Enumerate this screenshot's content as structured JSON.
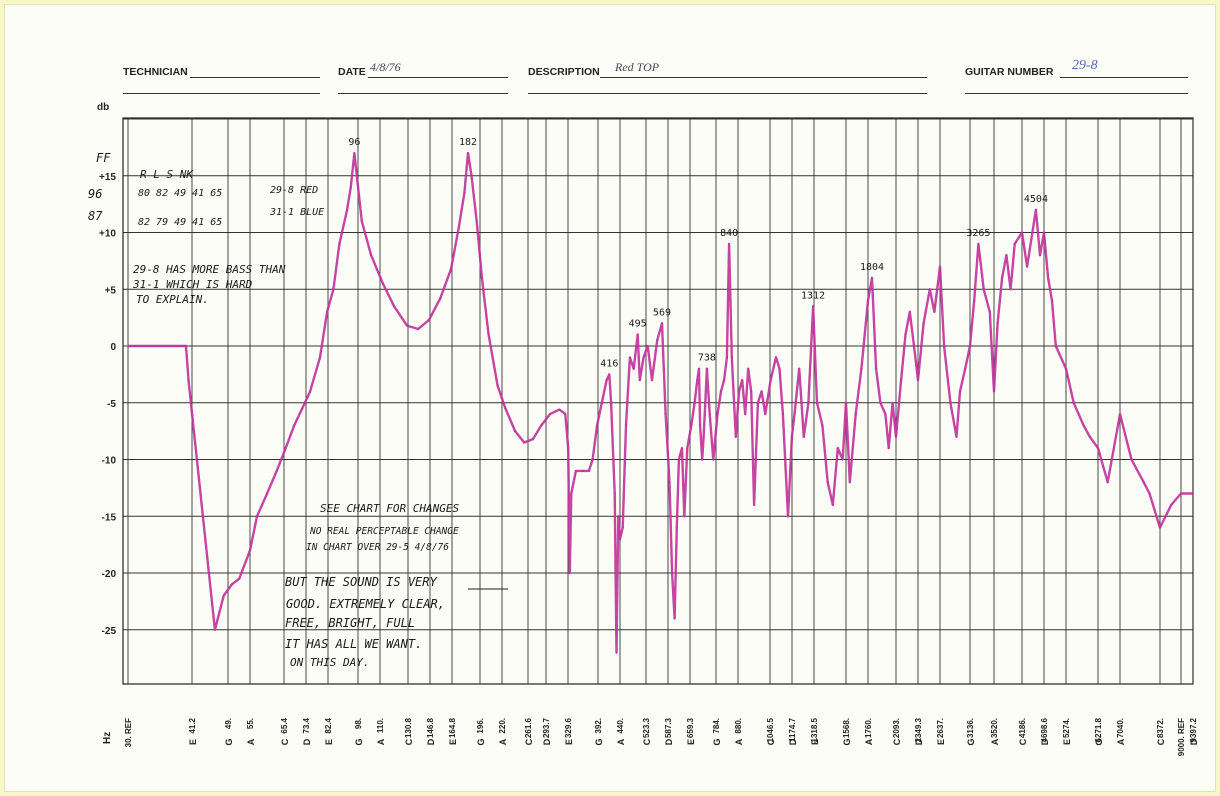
{
  "header": {
    "technician_label": "TECHNICIAN",
    "technician_value": "",
    "date_label": "DATE",
    "date_value": "4/8/76",
    "description_label": "DESCRIPTION",
    "description_value": "Red TOP",
    "guitar_number_label": "GUITAR NUMBER",
    "guitar_number_value": "29-8"
  },
  "chart_data": {
    "type": "line",
    "ylabel": "db",
    "xlabel": "Hz",
    "ylim": [
      -30,
      20
    ],
    "y_ticks": [
      "+15",
      "+10",
      "+5",
      "0",
      "-5",
      "-10",
      "-15",
      "-20",
      "-25"
    ],
    "x_ticks": [
      {
        "freq": "30. REF",
        "note": ""
      },
      {
        "freq": "41.2",
        "note": "E"
      },
      {
        "freq": "49.",
        "note": "G"
      },
      {
        "freq": "55.",
        "note": "A"
      },
      {
        "freq": "65.4",
        "note": "C"
      },
      {
        "freq": "73.4",
        "note": "D"
      },
      {
        "freq": "82.4",
        "note": "E"
      },
      {
        "freq": "98.",
        "note": "G"
      },
      {
        "freq": "110.",
        "note": "A"
      },
      {
        "freq": "130.8",
        "note": "C"
      },
      {
        "freq": "146.8",
        "note": "D"
      },
      {
        "freq": "164.8",
        "note": "E"
      },
      {
        "freq": "196.",
        "note": "G"
      },
      {
        "freq": "220.",
        "note": "A"
      },
      {
        "freq": "261.6",
        "note": "C"
      },
      {
        "freq": "293.7",
        "note": "D"
      },
      {
        "freq": "329.6",
        "note": "E"
      },
      {
        "freq": "392.",
        "note": "G"
      },
      {
        "freq": "440.",
        "note": "A"
      },
      {
        "freq": "523.3",
        "note": "C"
      },
      {
        "freq": "587.3",
        "note": "D"
      },
      {
        "freq": "659.3",
        "note": "E"
      },
      {
        "freq": "784.",
        "note": "G"
      },
      {
        "freq": "880.",
        "note": "A"
      },
      {
        "freq": "1046.5",
        "note": "C"
      },
      {
        "freq": "1174.7",
        "note": "D"
      },
      {
        "freq": "1318.5",
        "note": "E"
      },
      {
        "freq": "1568.",
        "note": "G"
      },
      {
        "freq": "1760.",
        "note": "A"
      },
      {
        "freq": "2093.",
        "note": "C"
      },
      {
        "freq": "2349.3",
        "note": "D"
      },
      {
        "freq": "2637.",
        "note": "E"
      },
      {
        "freq": "3136.",
        "note": "G"
      },
      {
        "freq": "3520.",
        "note": "A"
      },
      {
        "freq": "4186.",
        "note": "C"
      },
      {
        "freq": "4698.6",
        "note": "D"
      },
      {
        "freq": "5274.",
        "note": "E"
      },
      {
        "freq": "6271.8",
        "note": "G"
      },
      {
        "freq": "7040.",
        "note": "A"
      },
      {
        "freq": "8372.",
        "note": "C"
      },
      {
        "freq": "9000. REF",
        "note": ""
      },
      {
        "freq": "9397.2",
        "note": "D"
      }
    ],
    "series": [
      {
        "color": "#c0309a",
        "points": [
          [
            30,
            0
          ],
          [
            33,
            0
          ],
          [
            36,
            0
          ],
          [
            39,
            0
          ],
          [
            40,
            0
          ],
          [
            40.5,
            -3
          ],
          [
            46,
            -25
          ],
          [
            48,
            -22
          ],
          [
            50,
            -21
          ],
          [
            52,
            -20.5
          ],
          [
            55,
            -18
          ],
          [
            57,
            -15
          ],
          [
            60,
            -13
          ],
          [
            63,
            -11
          ],
          [
            66,
            -9
          ],
          [
            69,
            -7
          ],
          [
            72,
            -5.5
          ],
          [
            75,
            -4
          ],
          [
            79,
            -1
          ],
          [
            82,
            3
          ],
          [
            85,
            5
          ],
          [
            88,
            9
          ],
          [
            92,
            12
          ],
          [
            94,
            14
          ],
          [
            96,
            17
          ],
          [
            97,
            15.5
          ],
          [
            100,
            11
          ],
          [
            105,
            8
          ],
          [
            112,
            5.5
          ],
          [
            120,
            3.5
          ],
          [
            130,
            1.8
          ],
          [
            138,
            1.5
          ],
          [
            146,
            2.3
          ],
          [
            155,
            4.2
          ],
          [
            164,
            6.8
          ],
          [
            172,
            10.5
          ],
          [
            178,
            13.5
          ],
          [
            182,
            17
          ],
          [
            186,
            15
          ],
          [
            192,
            11
          ],
          [
            198,
            6
          ],
          [
            205,
            1
          ],
          [
            215,
            -3.5
          ],
          [
            225,
            -5.5
          ],
          [
            240,
            -7.5
          ],
          [
            255,
            -8.5
          ],
          [
            270,
            -8.2
          ],
          [
            285,
            -7
          ],
          [
            300,
            -6
          ],
          [
            315,
            -5.6
          ],
          [
            325,
            -6
          ],
          [
            330,
            -9
          ],
          [
            333,
            -20
          ],
          [
            336,
            -13
          ],
          [
            345,
            -11
          ],
          [
            360,
            -11
          ],
          [
            372,
            -11
          ],
          [
            380,
            -10
          ],
          [
            390,
            -7
          ],
          [
            400,
            -5
          ],
          [
            410,
            -3
          ],
          [
            416,
            -2.5
          ],
          [
            420,
            -5
          ],
          [
            428,
            -13
          ],
          [
            432,
            -27
          ],
          [
            436,
            -15
          ],
          [
            440,
            -17
          ],
          [
            448,
            -16
          ],
          [
            458,
            -7
          ],
          [
            470,
            -1
          ],
          [
            482,
            -2
          ],
          [
            495,
            1
          ],
          [
            502,
            -3
          ],
          [
            515,
            -1
          ],
          [
            528,
            0
          ],
          [
            540,
            -3
          ],
          [
            555,
            0.5
          ],
          [
            569,
            2
          ],
          [
            580,
            -6
          ],
          [
            592,
            -12
          ],
          [
            600,
            -20
          ],
          [
            608,
            -24
          ],
          [
            615,
            -16
          ],
          [
            622,
            -10
          ],
          [
            632,
            -9
          ],
          [
            640,
            -15
          ],
          [
            650,
            -9
          ],
          [
            665,
            -7
          ],
          [
            680,
            -5
          ],
          [
            692,
            -3
          ],
          [
            700,
            -2
          ],
          [
            705,
            -7
          ],
          [
            715,
            -10
          ],
          [
            722,
            -8
          ],
          [
            730,
            -5
          ],
          [
            738,
            -2
          ],
          [
            752,
            -6
          ],
          [
            770,
            -10
          ],
          [
            790,
            -6
          ],
          [
            805,
            -4
          ],
          [
            818,
            -3
          ],
          [
            830,
            -1
          ],
          [
            840,
            9
          ],
          [
            852,
            -1
          ],
          [
            862,
            -5
          ],
          [
            870,
            -8
          ],
          [
            885,
            -4
          ],
          [
            900,
            -3
          ],
          [
            915,
            -6
          ],
          [
            930,
            -2
          ],
          [
            945,
            -4
          ],
          [
            960,
            -14
          ],
          [
            980,
            -5
          ],
          [
            1000,
            -4
          ],
          [
            1020,
            -6
          ],
          [
            1050,
            -3
          ],
          [
            1080,
            -1
          ],
          [
            1100,
            -2
          ],
          [
            1120,
            -6
          ],
          [
            1150,
            -15
          ],
          [
            1174,
            -8
          ],
          [
            1190,
            -6
          ],
          [
            1220,
            -2
          ],
          [
            1250,
            -8
          ],
          [
            1280,
            -5
          ],
          [
            1312,
            3.5
          ],
          [
            1340,
            -5
          ],
          [
            1380,
            -7
          ],
          [
            1420,
            -12
          ],
          [
            1460,
            -14
          ],
          [
            1500,
            -9
          ],
          [
            1540,
            -10
          ],
          [
            1568,
            -5
          ],
          [
            1600,
            -12
          ],
          [
            1650,
            -6
          ],
          [
            1700,
            -2
          ],
          [
            1760,
            4
          ],
          [
            1804,
            6
          ],
          [
            1850,
            -2
          ],
          [
            1900,
            -5
          ],
          [
            1960,
            -6
          ],
          [
            2000,
            -9
          ],
          [
            2050,
            -5
          ],
          [
            2093,
            -8
          ],
          [
            2150,
            -3
          ],
          [
            2200,
            1
          ],
          [
            2250,
            3
          ],
          [
            2300,
            0
          ],
          [
            2349,
            -3
          ],
          [
            2420,
            2
          ],
          [
            2500,
            5
          ],
          [
            2560,
            3
          ],
          [
            2637,
            7
          ],
          [
            2700,
            0
          ],
          [
            2800,
            -5
          ],
          [
            2900,
            -8
          ],
          [
            2960,
            -4
          ],
          [
            3050,
            -2
          ],
          [
            3136,
            0
          ],
          [
            3200,
            4
          ],
          [
            3265,
            9
          ],
          [
            3350,
            5
          ],
          [
            3450,
            3
          ],
          [
            3520,
            -4
          ],
          [
            3600,
            2
          ],
          [
            3700,
            6
          ],
          [
            3800,
            8
          ],
          [
            3900,
            5
          ],
          [
            4000,
            9
          ],
          [
            4186,
            10
          ],
          [
            4300,
            7
          ],
          [
            4504,
            12
          ],
          [
            4600,
            8
          ],
          [
            4698,
            10
          ],
          [
            4800,
            6
          ],
          [
            4900,
            4
          ],
          [
            5000,
            0
          ],
          [
            5274,
            -2
          ],
          [
            5500,
            -5
          ],
          [
            5800,
            -7
          ],
          [
            6000,
            -8
          ],
          [
            6271,
            -9
          ],
          [
            6600,
            -12
          ],
          [
            7040,
            -6
          ],
          [
            7400,
            -10
          ],
          [
            7800,
            -12
          ],
          [
            8000,
            -13
          ],
          [
            8372,
            -16
          ],
          [
            8700,
            -14
          ],
          [
            9000,
            -13
          ],
          [
            9397,
            -13
          ]
        ]
      }
    ],
    "peak_labels": [
      {
        "freq": 96,
        "db": 17,
        "text": "96"
      },
      {
        "freq": 182,
        "db": 17,
        "text": "182"
      },
      {
        "freq": 416,
        "db": -2.5,
        "text": "416"
      },
      {
        "freq": 495,
        "db": 1,
        "text": "495"
      },
      {
        "freq": 569,
        "db": 2,
        "text": "569"
      },
      {
        "freq": 738,
        "db": -2,
        "text": "738"
      },
      {
        "freq": 840,
        "db": 9,
        "text": "840"
      },
      {
        "freq": 1312,
        "db": 3.5,
        "text": "1312"
      },
      {
        "freq": 1804,
        "db": 6,
        "text": "1804"
      },
      {
        "freq": 3265,
        "db": 9,
        "text": "3265"
      },
      {
        "freq": 4504,
        "db": 12,
        "text": "4504"
      }
    ]
  },
  "annotations": {
    "ff_label": "FF",
    "ff_96": "96",
    "ff_87": "87",
    "table_header": "R   L   S  NK",
    "row1_values": "80  82  49 41 65",
    "row2_values": "82  79  49 41 65",
    "legend1": "29-8 RED",
    "legend2": "31-1 BLUE",
    "note1_line1": "29-8 HAS MORE BASS THAN",
    "note1_line2": "31-1 WHICH IS HARD",
    "note1_line3": "TO EXPLAIN.",
    "note2_line1": "SEE CHART FOR CHANGES",
    "note2_line2": "NO REAL PERCEPTABLE CHANGE",
    "note2_line3": "IN CHART OVER 29-5  4/8/76",
    "note3_line1": "BUT THE SOUND IS VERY",
    "note3_line2": "GOOD. EXTREMELY CLEAR,",
    "note3_line3": "FREE, BRIGHT, FULL",
    "note3_line4": "IT HAS ALL WE WANT.",
    "note3_line5": "ON THIS DAY."
  }
}
